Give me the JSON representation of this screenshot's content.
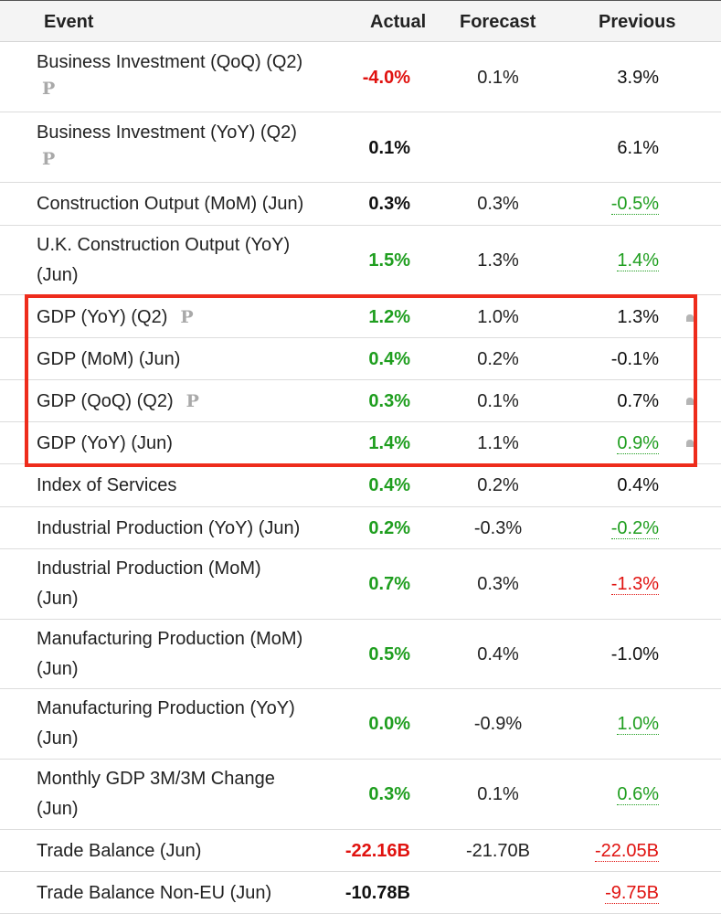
{
  "header": {
    "event": "Event",
    "actual": "Actual",
    "forecast": "Forecast",
    "previous": "Previous"
  },
  "rows": [
    {
      "event": "Business Investment (QoQ) (Q2)",
      "badge": "P",
      "actual": "-4.0%",
      "forecast": "0.1%",
      "previous": "3.9%"
    },
    {
      "event": "Business Investment (YoY) (Q2)",
      "badge": "P",
      "actual": "0.1%",
      "forecast": "",
      "previous": "6.1%"
    },
    {
      "event": "Construction Output (MoM) (Jun)",
      "actual": "0.3%",
      "forecast": "0.3%",
      "previous": "-0.5%"
    },
    {
      "event_line1": "U.K. Construction Output (YoY)",
      "event_line2": "(Jun)",
      "actual": "1.5%",
      "forecast": "1.3%",
      "previous": "1.4%"
    },
    {
      "event": "GDP (YoY) (Q2)",
      "badge": "P",
      "actual": "1.2%",
      "forecast": "1.0%",
      "previous": "1.3%"
    },
    {
      "event": "GDP (MoM) (Jun)",
      "actual": "0.4%",
      "forecast": "0.2%",
      "previous": "-0.1%"
    },
    {
      "event": "GDP (QoQ) (Q2)",
      "badge": "P",
      "actual": "0.3%",
      "forecast": "0.1%",
      "previous": "0.7%"
    },
    {
      "event": "GDP (YoY) (Jun)",
      "actual": "1.4%",
      "forecast": "1.1%",
      "previous": "0.9%"
    },
    {
      "event": "Index of Services",
      "actual": "0.4%",
      "forecast": "0.2%",
      "previous": "0.4%"
    },
    {
      "event": "Industrial Production (YoY) (Jun)",
      "actual": "0.2%",
      "forecast": "-0.3%",
      "previous": "-0.2%"
    },
    {
      "event_line1": "Industrial Production (MoM)",
      "event_line2": "(Jun)",
      "actual": "0.7%",
      "forecast": "0.3%",
      "previous": "-1.3%"
    },
    {
      "event_line1": "Manufacturing Production (MoM)",
      "event_line2": "(Jun)",
      "actual": "0.5%",
      "forecast": "0.4%",
      "previous": "-1.0%"
    },
    {
      "event_line1": "Manufacturing Production (YoY)",
      "event_line2": "(Jun)",
      "actual": "0.0%",
      "forecast": "-0.9%",
      "previous": "1.0%"
    },
    {
      "event_line1": "Monthly GDP 3M/3M Change",
      "event_line2": "(Jun)",
      "actual": "0.3%",
      "forecast": "0.1%",
      "previous": "0.6%"
    },
    {
      "event": "Trade Balance (Jun)",
      "actual": "-22.16B",
      "forecast": "-21.70B",
      "previous": "-22.05B"
    },
    {
      "event": "Trade Balance Non-EU (Jun)",
      "actual": "-10.78B",
      "forecast": "",
      "previous": "-9.75B"
    }
  ],
  "colors": {
    "positive": "#1f9e1f",
    "negative": "#e0120f",
    "highlight_border": "#ee2c1c"
  },
  "icons": {
    "preliminary_badge": "P",
    "alert_icon": "bell-icon"
  }
}
